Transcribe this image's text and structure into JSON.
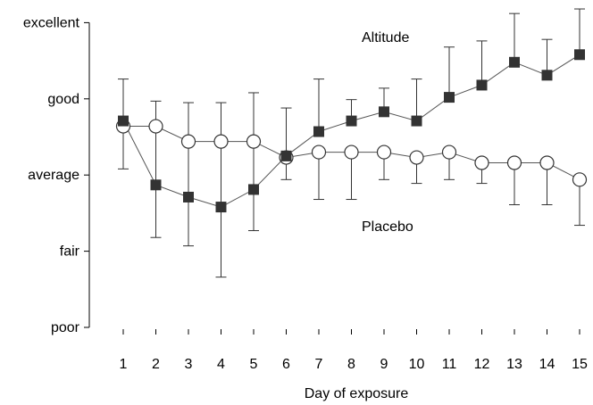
{
  "chart_data": {
    "type": "line",
    "xlabel": "Day of exposure",
    "ylabel": "",
    "x": [
      1,
      2,
      3,
      4,
      5,
      6,
      7,
      8,
      9,
      10,
      11,
      12,
      13,
      14,
      15
    ],
    "y_categories": [
      "poor",
      "fair",
      "average",
      "good",
      "excellent"
    ],
    "ylim": [
      0,
      4
    ],
    "grid": false,
    "series": [
      {
        "name": "Altitude",
        "marker": "filled-square",
        "color": "#333333",
        "values": [
          2.71,
          1.87,
          1.71,
          1.58,
          1.81,
          2.25,
          2.57,
          2.71,
          2.83,
          2.71,
          3.02,
          3.18,
          3.48,
          3.31,
          3.58
        ],
        "err_upper": [
          3.26,
          2.97,
          2.95,
          2.95,
          3.08,
          2.88,
          3.26,
          2.99,
          3.14,
          3.26,
          3.68,
          3.76,
          4.12,
          3.78,
          4.18
        ],
        "err_lower": [
          2.71,
          1.18,
          1.07,
          0.66,
          1.27,
          2.25,
          2.57,
          2.71,
          2.83,
          2.71,
          3.02,
          3.18,
          3.48,
          3.31,
          3.58
        ]
      },
      {
        "name": "Placebo",
        "marker": "open-circle",
        "color": "#333333",
        "values": [
          2.64,
          2.64,
          2.44,
          2.44,
          2.44,
          2.23,
          2.3,
          2.3,
          2.3,
          2.23,
          2.3,
          2.16,
          2.16,
          2.16,
          1.94
        ],
        "err_upper": [
          2.64,
          2.64,
          2.44,
          2.44,
          2.44,
          2.23,
          2.3,
          2.3,
          2.3,
          2.23,
          2.3,
          2.16,
          2.16,
          2.16,
          1.94
        ],
        "err_lower": [
          2.08,
          2.64,
          2.44,
          2.44,
          2.44,
          1.94,
          1.68,
          1.68,
          1.94,
          1.89,
          1.94,
          1.89,
          1.61,
          1.61,
          1.34
        ]
      }
    ]
  }
}
